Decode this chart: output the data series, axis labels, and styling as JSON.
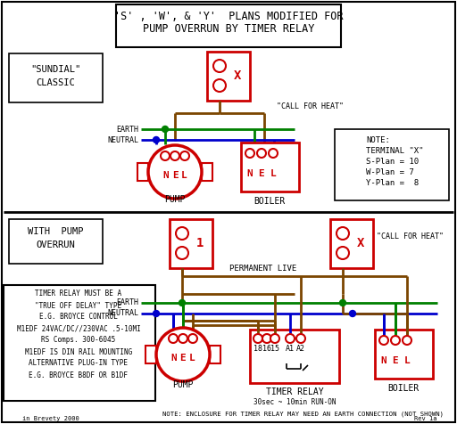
{
  "title_line1": "'S' , 'W', & 'Y'  PLANS MODIFIED FOR",
  "title_line2": "PUMP OVERRUN BY TIMER RELAY",
  "bg_color": "#ffffff",
  "border_color": "#000000",
  "red": "#cc0000",
  "brown": "#7b4500",
  "green": "#008000",
  "blue": "#0000cc",
  "note_top_lines": [
    "NOTE:",
    "TERMINAL \"X\"",
    "S-Plan = 10",
    "W-Plan = 7",
    "Y-Plan =  8"
  ],
  "bottom_note": "NOTE: ENCLOSURE FOR TIMER RELAY MAY NEED AN EARTH CONNECTION (NOT SHOWN)",
  "footer_left": "in Brevety 2000",
  "footer_right": "Rev 1a"
}
